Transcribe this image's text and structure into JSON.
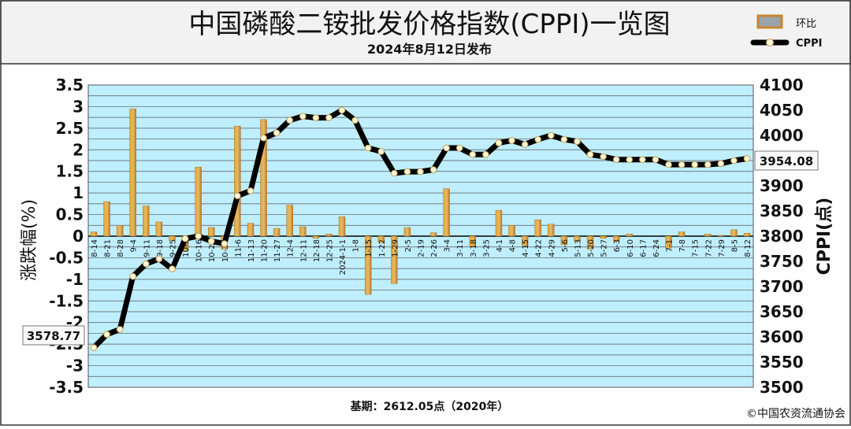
{
  "chart_data": {
    "type": "bar+line",
    "title": "中国磷酸二铵批发价格指数(CPPI)一览图",
    "subtitle": "2024年8月12日发布",
    "footer_base": "基期：2612.05点（2020年）",
    "copyright": "©中国农资流通协会",
    "legend": {
      "placement": "top-right",
      "bar_label": "环比",
      "line_label": "CPPI"
    },
    "left_axis": {
      "label": "涨跌幅(%)",
      "min": -3.5,
      "max": 3.5,
      "ticks": [
        "-3.5",
        "-3",
        "-2.5",
        "-2",
        "-1.5",
        "-1",
        "-0.5",
        "0",
        "0.5",
        "1",
        "1.5",
        "2",
        "2.5",
        "3",
        "3.5"
      ]
    },
    "right_axis": {
      "label": "CPPI(点)",
      "min": 3500,
      "max": 4100,
      "ticks": [
        "3500",
        "3550",
        "3600",
        "3650",
        "3700",
        "3750",
        "3800",
        "3850",
        "3900",
        "3950",
        "4000",
        "4050",
        "4100"
      ]
    },
    "categories": [
      "8-14",
      "8-21",
      "8-28",
      "9-4",
      "9-11",
      "9-18",
      "9-25",
      "10-9",
      "10-16",
      "10-23",
      "10-30",
      "11-6",
      "11-13",
      "11-20",
      "11-27",
      "12-4",
      "12-11",
      "12-18",
      "12-25",
      "2024-1-1",
      "1-8",
      "1-15",
      "1-22",
      "1-29",
      "2-5",
      "2-19",
      "2-26",
      "3-4",
      "3-11",
      "3-18",
      "3-25",
      "4-1",
      "4-8",
      "4-15",
      "4-22",
      "4-29",
      "5-6",
      "5-13",
      "5-20",
      "5-27",
      "6-3",
      "6-10",
      "6-17",
      "6-24",
      "7-1",
      "7-8",
      "7-15",
      "7-22",
      "7-29",
      "8-5",
      "8-12"
    ],
    "series": [
      {
        "name": "环比",
        "type": "bar",
        "axis": "left",
        "values": [
          0.1,
          0.8,
          0.25,
          2.95,
          0.7,
          0.33,
          -0.1,
          -0.35,
          1.6,
          0.2,
          -0.3,
          2.55,
          0.3,
          2.7,
          0.18,
          0.72,
          0.22,
          -0.05,
          0.05,
          0.45,
          0.0,
          -1.35,
          -0.15,
          -1.1,
          0.2,
          0.0,
          0.08,
          1.1,
          0.0,
          -0.25,
          0.0,
          0.6,
          0.25,
          -0.22,
          0.38,
          0.28,
          -0.2,
          -0.12,
          -0.3,
          -0.05,
          -0.12,
          0.05,
          0.0,
          0.0,
          -0.28,
          0.1,
          0.0,
          0.05,
          0.02,
          0.15,
          0.07
        ]
      },
      {
        "name": "CPPI",
        "type": "line",
        "axis": "right",
        "values": [
          3578.77,
          3605,
          3615,
          3720,
          3745,
          3755,
          3735,
          3795,
          3800,
          3790,
          3785,
          3880,
          3890,
          3995,
          4005,
          4030,
          4038,
          4035,
          4035,
          4050,
          4030,
          3975,
          3968,
          3925,
          3928,
          3928,
          3932,
          3975,
          3975,
          3962,
          3962,
          3985,
          3990,
          3982,
          3992,
          4000,
          3992,
          3988,
          3962,
          3958,
          3952,
          3952,
          3952,
          3952,
          3942,
          3942,
          3942,
          3942,
          3944,
          3950,
          3954.08
        ]
      }
    ],
    "annotations": {
      "first_value": "3578.77",
      "last_value": "3954.08"
    },
    "grid": true
  }
}
